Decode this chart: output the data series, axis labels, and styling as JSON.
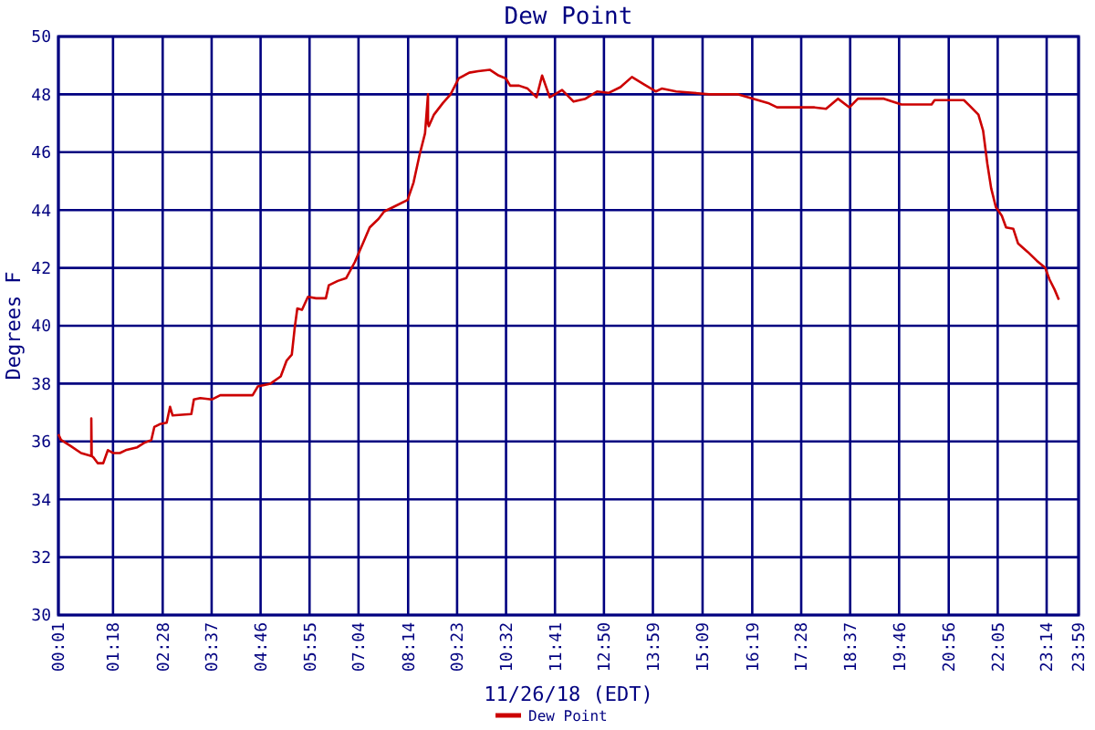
{
  "chart_data": {
    "type": "line",
    "title": "Dew Point",
    "xlabel": "11/26/18 (EDT)",
    "ylabel": "Degrees F",
    "xlim": [
      0.017,
      23.983
    ],
    "xticks": [
      {
        "value": 0.017,
        "label": "00:01"
      },
      {
        "value": 1.3,
        "label": "01:18"
      },
      {
        "value": 2.467,
        "label": "02:28"
      },
      {
        "value": 3.617,
        "label": "03:37"
      },
      {
        "value": 4.767,
        "label": "04:46"
      },
      {
        "value": 5.917,
        "label": "05:55"
      },
      {
        "value": 7.067,
        "label": "07:04"
      },
      {
        "value": 8.233,
        "label": "08:14"
      },
      {
        "value": 9.383,
        "label": "09:23"
      },
      {
        "value": 10.533,
        "label": "10:32"
      },
      {
        "value": 11.683,
        "label": "11:41"
      },
      {
        "value": 12.833,
        "label": "12:50"
      },
      {
        "value": 13.983,
        "label": "13:59"
      },
      {
        "value": 15.15,
        "label": "15:09"
      },
      {
        "value": 16.317,
        "label": "16:19"
      },
      {
        "value": 17.467,
        "label": "17:28"
      },
      {
        "value": 18.617,
        "label": "18:37"
      },
      {
        "value": 19.767,
        "label": "19:46"
      },
      {
        "value": 20.933,
        "label": "20:56"
      },
      {
        "value": 22.083,
        "label": "22:05"
      },
      {
        "value": 23.233,
        "label": "23:14"
      },
      {
        "value": 23.983,
        "label": "23:59"
      }
    ],
    "ylim": [
      30,
      50
    ],
    "yticks": [
      30,
      32,
      34,
      36,
      38,
      40,
      42,
      44,
      46,
      48,
      50
    ],
    "grid": true,
    "legend": "bottom",
    "line_style": "solid",
    "marker": "none",
    "series": [
      {
        "name": "Dew Point",
        "color": "#cc0000",
        "x": [
          0.017,
          0.08,
          0.3,
          0.55,
          0.79,
          0.79,
          0.8,
          0.84,
          0.94,
          1.07,
          1.18,
          1.3,
          1.46,
          1.6,
          1.87,
          2.03,
          2.2,
          2.27,
          2.4,
          2.56,
          2.64,
          2.7,
          3.14,
          3.2,
          3.35,
          3.617,
          3.82,
          4.58,
          4.7,
          5.0,
          5.24,
          5.38,
          5.5,
          5.57,
          5.63,
          5.74,
          5.88,
          6.07,
          6.3,
          6.37,
          6.58,
          6.78,
          6.98,
          7.2,
          7.33,
          7.54,
          7.67,
          7.88,
          8.22,
          8.36,
          8.5,
          8.63,
          8.7,
          8.7,
          8.72,
          8.84,
          9.05,
          9.23,
          9.42,
          9.67,
          9.88,
          10.15,
          10.36,
          10.53,
          10.63,
          10.84,
          11.04,
          11.25,
          11.38,
          11.56,
          11.68,
          11.85,
          12.12,
          12.4,
          12.67,
          12.94,
          13.22,
          13.49,
          13.77,
          14.05,
          14.19,
          14.53,
          14.94,
          15.3,
          15.99,
          16.34,
          16.69,
          16.9,
          17.24,
          17.3,
          17.78,
          18.05,
          18.33,
          18.6,
          18.8,
          19.41,
          19.82,
          20.53,
          20.6,
          21.29,
          21.43,
          21.63,
          21.74,
          21.84,
          21.93,
          22.04,
          22.18,
          22.28,
          22.45,
          22.56,
          22.79,
          23.0,
          23.2,
          23.3,
          23.42,
          23.52
        ],
        "values": [
          36.25,
          36.05,
          35.85,
          35.6,
          35.5,
          36.8,
          35.5,
          35.45,
          35.25,
          35.25,
          35.7,
          35.6,
          35.6,
          35.7,
          35.8,
          35.95,
          36.05,
          36.5,
          36.6,
          36.65,
          37.2,
          36.9,
          36.95,
          37.45,
          37.5,
          37.45,
          37.6,
          37.6,
          37.9,
          38.0,
          38.25,
          38.8,
          39.0,
          39.95,
          40.6,
          40.55,
          41.0,
          40.95,
          40.95,
          41.4,
          41.55,
          41.65,
          42.2,
          42.95,
          43.4,
          43.7,
          43.95,
          44.1,
          44.35,
          44.95,
          45.9,
          46.65,
          48.0,
          47.0,
          46.9,
          47.3,
          47.7,
          48.0,
          48.55,
          48.75,
          48.8,
          48.85,
          48.65,
          48.55,
          48.3,
          48.3,
          48.2,
          47.9,
          48.65,
          47.9,
          48.0,
          48.15,
          47.75,
          47.85,
          48.1,
          48.05,
          48.25,
          48.6,
          48.35,
          48.1,
          48.2,
          48.1,
          48.05,
          48.0,
          48.0,
          47.85,
          47.7,
          47.55,
          47.55,
          47.55,
          47.55,
          47.5,
          47.85,
          47.55,
          47.85,
          47.85,
          47.65,
          47.65,
          47.8,
          47.8,
          47.6,
          47.3,
          46.75,
          45.6,
          44.75,
          44.1,
          43.8,
          43.4,
          43.35,
          42.85,
          42.55,
          42.25,
          42.0,
          41.6,
          41.25,
          40.9
        ]
      }
    ]
  }
}
